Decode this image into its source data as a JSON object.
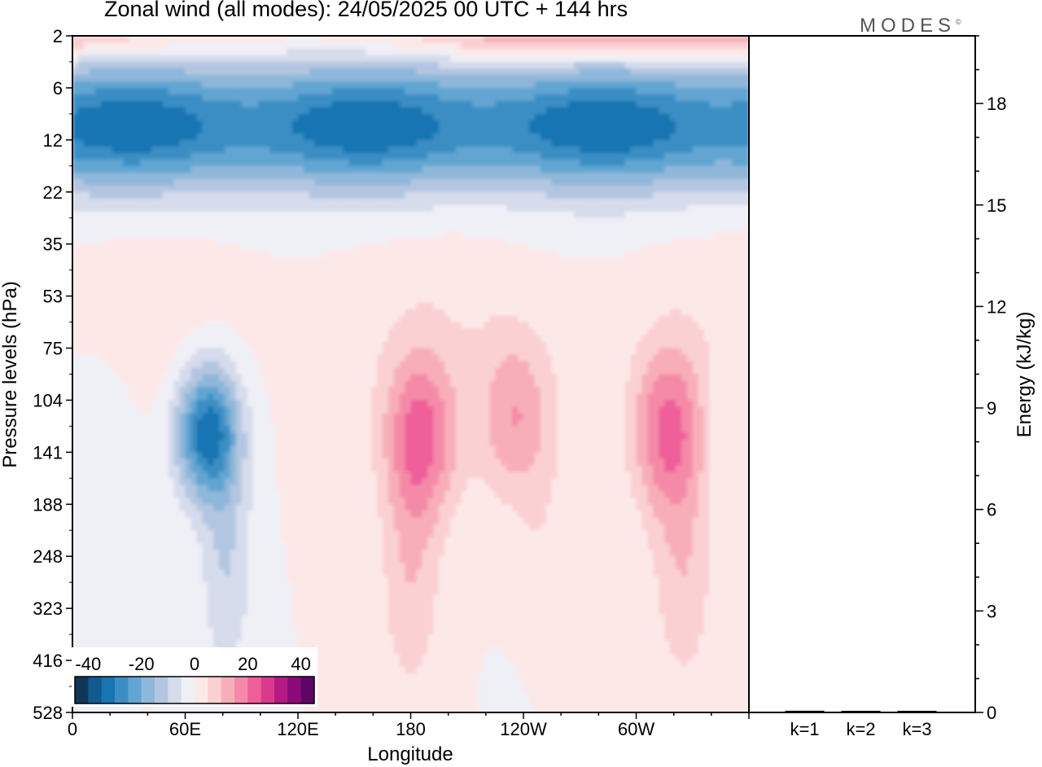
{
  "header": {
    "title": "Zonal wind (all modes):  24/05/2025  00 UTC  + 144 hrs",
    "logo": "MODES",
    "logo_mark": "©"
  },
  "chart_data": [
    {
      "type": "heatmap",
      "variable": "Zonal wind",
      "xlabel": "Longitude",
      "ylabel": "Pressure levels (hPa)",
      "x_ticks": [
        "0",
        "60E",
        "120E",
        "180",
        "120W",
        "60W"
      ],
      "x_tick_degrees": [
        0,
        60,
        120,
        180,
        240,
        300
      ],
      "xlim": [
        0,
        360
      ],
      "y_ticks": [
        "2",
        "6",
        "12",
        "22",
        "35",
        "53",
        "75",
        "104",
        "141",
        "188",
        "248",
        "323",
        "416",
        "528"
      ],
      "y_scale": "model levels (non-linear)",
      "colorbar": {
        "tick_labels": [
          "-40",
          "-20",
          "0",
          "20",
          "40"
        ],
        "range": [
          -45,
          45
        ],
        "step": 5,
        "colors": [
          "#0f3657",
          "#115a8e",
          "#1874b2",
          "#3a8ec4",
          "#62a5d2",
          "#8fb7d9",
          "#b3c6e1",
          "#d6dcec",
          "#efeff6",
          "#fde8e8",
          "#fbd0d2",
          "#f8aeb8",
          "#f58aa8",
          "#ef5f99",
          "#d93a8e",
          "#b41a84",
          "#8b0a7a",
          "#5e0566"
        ]
      },
      "field": {
        "upper_easterly_jet": {
          "center_level_hPa": 10,
          "peak_value": -35
        },
        "stratospheric_westerlies": {
          "level_hPa": 2,
          "value_range": [
            5,
            20
          ]
        },
        "upper_trop_easterly_core": {
          "center_lon": 72,
          "center_level_hPa": 125,
          "peak_value": -35
        },
        "westerly_maxima": [
          {
            "center_lon": 185,
            "center_level_hPa": 130,
            "peak_value": 20
          },
          {
            "center_lon": 317,
            "center_level_hPa": 125,
            "peak_value": 20
          },
          {
            "center_lon": 237,
            "center_level_hPa": 115,
            "peak_value": 15
          }
        ]
      }
    },
    {
      "type": "bar",
      "ylabel": "Energy (kJ/kg)",
      "categories": [
        "k=1",
        "k=2",
        "k=3"
      ],
      "values": [
        0.05,
        0.03,
        0.04
      ],
      "ylim": [
        0,
        20
      ],
      "y_ticks": [
        "0",
        "3",
        "6",
        "9",
        "12",
        "15",
        "18"
      ]
    }
  ]
}
